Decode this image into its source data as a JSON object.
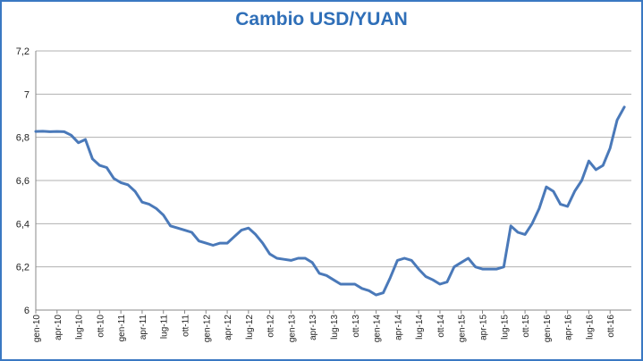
{
  "chart_data": {
    "type": "line",
    "title": "Cambio USD/YUAN",
    "xlabel": "",
    "ylabel": "",
    "ylim": [
      6,
      7.2
    ],
    "yticks": [
      "6",
      "6,2",
      "6,4",
      "6,6",
      "6,8",
      "7",
      "7,2"
    ],
    "grid": "horizontal",
    "colors": {
      "line": "#4a79b9",
      "grid": "#b0b0b0",
      "title": "#2f6fb8",
      "border": "#3a78c2"
    },
    "x_tick_labels": [
      "gen-10",
      "apr-10",
      "lug-10",
      "ott-10",
      "gen-11",
      "apr-11",
      "lug-11",
      "ott-11",
      "gen-12",
      "apr-12",
      "lug-12",
      "ott-12",
      "gen-13",
      "apr-13",
      "lug-13",
      "ott-13",
      "gen-14",
      "apr-14",
      "lug-14",
      "ott-14",
      "gen-15",
      "apr-15",
      "lug-15",
      "ott-15",
      "gen-16",
      "apr-16",
      "lug-16",
      "ott-16"
    ],
    "series": [
      {
        "name": "",
        "x": [
          "2010-01",
          "2010-02",
          "2010-03",
          "2010-04",
          "2010-05",
          "2010-06",
          "2010-07",
          "2010-08",
          "2010-09",
          "2010-10",
          "2010-11",
          "2010-12",
          "2011-01",
          "2011-02",
          "2011-03",
          "2011-04",
          "2011-05",
          "2011-06",
          "2011-07",
          "2011-08",
          "2011-09",
          "2011-10",
          "2011-11",
          "2011-12",
          "2012-01",
          "2012-02",
          "2012-03",
          "2012-04",
          "2012-05",
          "2012-06",
          "2012-07",
          "2012-08",
          "2012-09",
          "2012-10",
          "2012-11",
          "2012-12",
          "2013-01",
          "2013-02",
          "2013-03",
          "2013-04",
          "2013-05",
          "2013-06",
          "2013-07",
          "2013-08",
          "2013-09",
          "2013-10",
          "2013-11",
          "2013-12",
          "2014-01",
          "2014-02",
          "2014-03",
          "2014-04",
          "2014-05",
          "2014-06",
          "2014-07",
          "2014-08",
          "2014-09",
          "2014-10",
          "2014-11",
          "2014-12",
          "2015-01",
          "2015-02",
          "2015-03",
          "2015-04",
          "2015-05",
          "2015-06",
          "2015-07",
          "2015-08",
          "2015-09",
          "2015-10",
          "2015-11",
          "2015-12",
          "2016-01",
          "2016-02",
          "2016-03",
          "2016-04",
          "2016-05",
          "2016-06",
          "2016-07",
          "2016-08",
          "2016-09",
          "2016-10",
          "2016-11",
          "2016-12"
        ],
        "values": [
          6.827,
          6.828,
          6.826,
          6.827,
          6.826,
          6.81,
          6.775,
          6.79,
          6.7,
          6.67,
          6.66,
          6.61,
          6.59,
          6.58,
          6.55,
          6.5,
          6.49,
          6.47,
          6.44,
          6.39,
          6.38,
          6.37,
          6.36,
          6.32,
          6.31,
          6.3,
          6.31,
          6.31,
          6.34,
          6.37,
          6.38,
          6.35,
          6.31,
          6.26,
          6.24,
          6.235,
          6.23,
          6.24,
          6.24,
          6.22,
          6.17,
          6.16,
          6.14,
          6.12,
          6.12,
          6.12,
          6.1,
          6.09,
          6.07,
          6.08,
          6.15,
          6.23,
          6.24,
          6.23,
          6.19,
          6.155,
          6.14,
          6.12,
          6.13,
          6.2,
          6.22,
          6.24,
          6.2,
          6.19,
          6.19,
          6.19,
          6.2,
          6.39,
          6.36,
          6.35,
          6.4,
          6.47,
          6.57,
          6.55,
          6.49,
          6.48,
          6.55,
          6.6,
          6.69,
          6.65,
          6.67,
          6.75,
          6.88,
          6.94
        ]
      }
    ]
  }
}
